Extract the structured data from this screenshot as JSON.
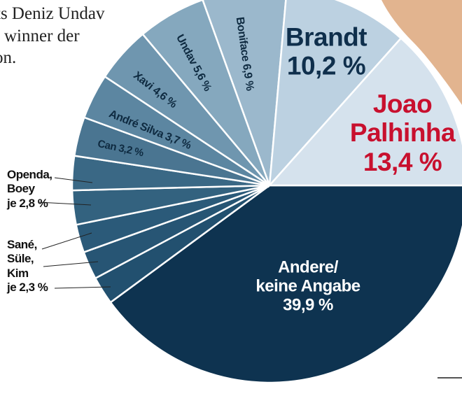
{
  "text_fragment": [
    "ts Deniz Undav",
    "winner der",
    "on."
  ],
  "chart_data": {
    "type": "pie",
    "categories": [
      "Andere/\nkeine Angabe",
      "Kim",
      "Süle,",
      "Sané,",
      "Boey",
      "Openda,",
      "Can",
      "André Silva",
      "Xavi",
      "Undav",
      "Boniface",
      "Brandt",
      "Joao\nPalhinha"
    ],
    "values": [
      39.9,
      2.3,
      2.3,
      2.3,
      2.8,
      2.8,
      3.2,
      3.7,
      4.6,
      5.6,
      6.9,
      10.2,
      13.4
    ],
    "value_labels": [
      "39,9 %",
      "je 2,3 %",
      null,
      null,
      "je 2,8 %",
      null,
      "3,2 %",
      "3,7 %",
      "4,6 %",
      "5,6 %",
      "6,9 %",
      "10,2 %",
      "13,4 %"
    ],
    "colors": [
      "#0e3350",
      "#22506f",
      "#275574",
      "#2b5a79",
      "#33627f",
      "#3a6885",
      "#4a7591",
      "#5c86a1",
      "#6f96af",
      "#85a8be",
      "#9bb8cc",
      "#bcd1e1",
      "#d5e2ed"
    ]
  }
}
